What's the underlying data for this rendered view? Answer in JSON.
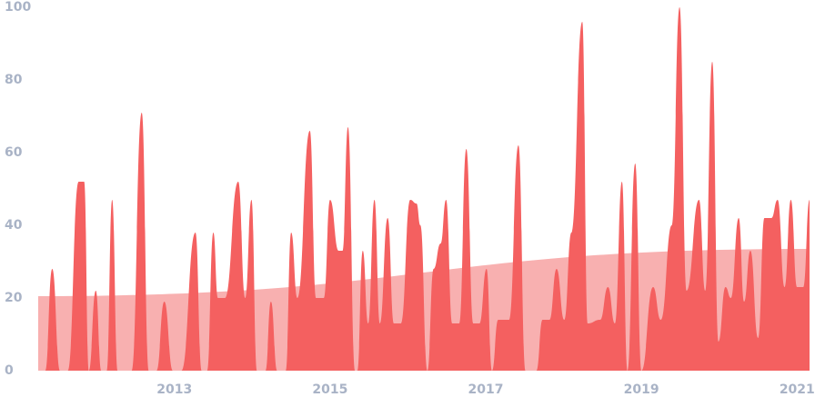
{
  "chart_data": {
    "type": "area",
    "x": [
      2011.25,
      2011.34,
      2011.43,
      2011.53,
      2011.63,
      2011.77,
      2011.84,
      2011.9,
      2011.99,
      2012.06,
      2012.13,
      2012.2,
      2012.27,
      2012.45,
      2012.58,
      2012.67,
      2012.77,
      2012.87,
      2012.98,
      2013.09,
      2013.27,
      2013.35,
      2013.42,
      2013.5,
      2013.56,
      2013.65,
      2013.82,
      2013.91,
      2013.99,
      2014.06,
      2014.17,
      2014.24,
      2014.32,
      2014.43,
      2014.5,
      2014.58,
      2014.74,
      2014.82,
      2014.92,
      2015.0,
      2015.11,
      2015.16,
      2015.23,
      2015.32,
      2015.35,
      2015.42,
      2015.49,
      2015.57,
      2015.64,
      2015.74,
      2015.82,
      2015.91,
      2016.03,
      2016.11,
      2016.16,
      2016.25,
      2016.33,
      2016.42,
      2016.49,
      2016.57,
      2016.66,
      2016.75,
      2016.84,
      2016.92,
      2017.01,
      2017.08,
      2017.16,
      2017.3,
      2017.42,
      2017.51,
      2017.65,
      2017.73,
      2017.82,
      2017.91,
      2018.01,
      2018.1,
      2018.24,
      2018.31,
      2018.47,
      2018.57,
      2018.66,
      2018.75,
      2018.82,
      2018.92,
      2019.0,
      2019.15,
      2019.25,
      2019.39,
      2019.49,
      2019.58,
      2019.74,
      2019.82,
      2019.91,
      2019.99,
      2020.08,
      2020.15,
      2020.25,
      2020.32,
      2020.4,
      2020.5,
      2020.58,
      2020.67,
      2020.75,
      2020.84,
      2020.92,
      2021.0,
      2021.08,
      2021.16
    ],
    "series": [
      {
        "color": "#f46060",
        "values": [
          0,
          0,
          28,
          0,
          0,
          52,
          52,
          0,
          22,
          0,
          0,
          47,
          0,
          0,
          71,
          0,
          0,
          19,
          0,
          0,
          38,
          0,
          0,
          38,
          20,
          20,
          52,
          20,
          47,
          0,
          0,
          19,
          0,
          0,
          38,
          20,
          66,
          20,
          20,
          47,
          33,
          33,
          67,
          0,
          0,
          33,
          13,
          47,
          13,
          42,
          13,
          13,
          47,
          46,
          40,
          0,
          28,
          35,
          47,
          13,
          13,
          61,
          13,
          13,
          28,
          0,
          14,
          14,
          62,
          0,
          0,
          14,
          14,
          28,
          14,
          38,
          96,
          13,
          14,
          23,
          13,
          52,
          0,
          57,
          0,
          23,
          14,
          40,
          100,
          22,
          47,
          22,
          85,
          8,
          23,
          20,
          42,
          19,
          33,
          9,
          42,
          42,
          47,
          23,
          47,
          23,
          23,
          47
        ]
      },
      {
        "color": "#f8b0b0",
        "x": [
          2011.25,
          2021.16
        ],
        "values": [
          20.5,
          33.5
        ]
      }
    ],
    "xlim": [
      2011.25,
      2021.16
    ],
    "xticks": [
      2013,
      2015,
      2017,
      2019,
      2021
    ],
    "ylim": [
      0,
      100
    ],
    "yticks": [
      0,
      20,
      40,
      60,
      80,
      100
    ]
  }
}
